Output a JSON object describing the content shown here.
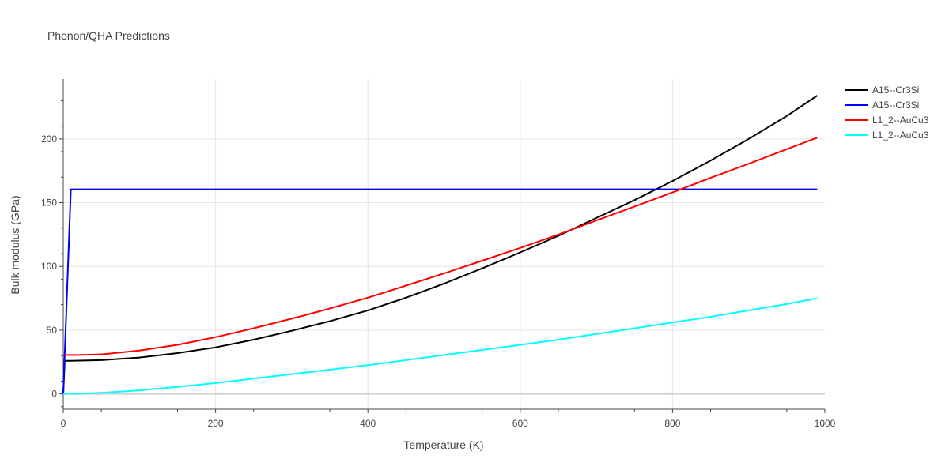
{
  "chart_data": {
    "type": "line",
    "title": "Phonon/QHA Predictions",
    "xlabel": "Temperature (K)",
    "ylabel": "Bulk modulus (GPa)",
    "xlim": [
      0,
      1000
    ],
    "ylim": [
      -12,
      247
    ],
    "x_ticks": [
      0,
      200,
      400,
      600,
      800,
      1000
    ],
    "y_ticks": [
      0,
      50,
      100,
      150,
      200
    ],
    "grid": true,
    "legend_position": "top-right",
    "series": [
      {
        "name": "A15--Cr3Si",
        "color": "#000000",
        "x": [
          0,
          2,
          10,
          50,
          100,
          150,
          200,
          250,
          300,
          350,
          400,
          450,
          500,
          550,
          600,
          650,
          700,
          750,
          800,
          850,
          900,
          950,
          990
        ],
        "y": [
          0,
          26,
          26,
          26.5,
          28.5,
          32,
          36.5,
          42.5,
          49.5,
          57,
          65.5,
          75.5,
          86.5,
          98.5,
          111,
          124,
          138,
          152,
          167,
          183,
          200,
          218,
          234
        ]
      },
      {
        "name": "A15--Cr3Si",
        "color": "#0000ff",
        "x": [
          0,
          10,
          50,
          100,
          200,
          300,
          400,
          500,
          600,
          700,
          800,
          900,
          990
        ],
        "y": [
          0,
          160.5,
          160.5,
          160.5,
          160.5,
          160.5,
          160.5,
          160.5,
          160.5,
          160.5,
          160.5,
          160.5,
          160.5
        ]
      },
      {
        "name": "L1_2--AuCu3",
        "color": "#ff0000",
        "x": [
          0,
          20,
          50,
          100,
          150,
          200,
          250,
          300,
          350,
          400,
          450,
          500,
          550,
          600,
          650,
          700,
          750,
          800,
          850,
          900,
          950,
          990
        ],
        "y": [
          30.5,
          30.5,
          31,
          34,
          38.5,
          44.5,
          51.5,
          59,
          67,
          75.5,
          85,
          94.5,
          104.5,
          114.5,
          125,
          136,
          147,
          158,
          169.5,
          180.5,
          192,
          201
        ]
      },
      {
        "name": "L1_2--AuCu3",
        "color": "#00ffff",
        "x": [
          0,
          25,
          50,
          100,
          150,
          200,
          250,
          300,
          350,
          400,
          450,
          500,
          550,
          600,
          650,
          700,
          750,
          800,
          850,
          900,
          950,
          990
        ],
        "y": [
          0,
          0.2,
          0.8,
          2.8,
          5.5,
          8.5,
          12,
          15.5,
          19,
          22.5,
          26.5,
          30.5,
          34.5,
          38.5,
          42.5,
          47,
          51.5,
          56,
          60.5,
          65.5,
          70.5,
          75
        ]
      }
    ]
  }
}
